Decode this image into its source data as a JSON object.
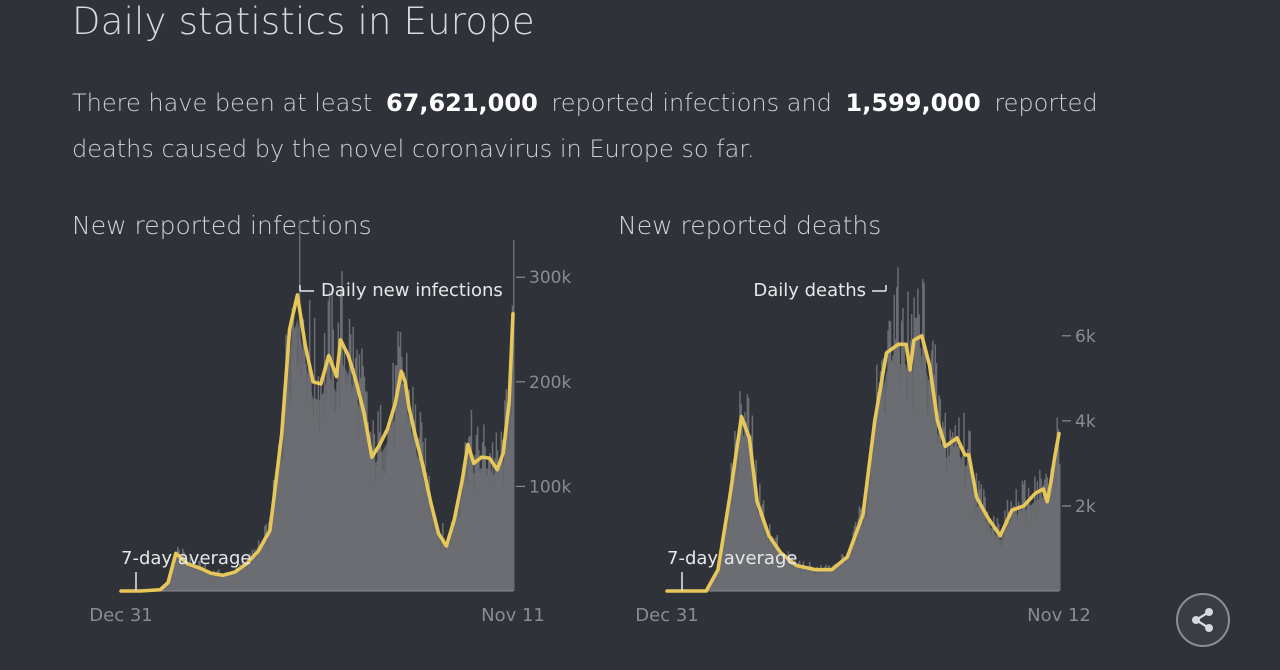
{
  "title": "Daily statistics in Europe",
  "intro": {
    "before": "There have been at least",
    "infections": "67,621,000",
    "middle": "reported infections and",
    "deaths": "1,599,000",
    "after": "reported deaths caused by the novel coronavirus in Europe so far."
  },
  "colors": {
    "background": "#2f3239",
    "bars": "#6b6d72",
    "average": "#e8c75a",
    "text": "#d3d4d7",
    "axis": "#8a8c91"
  },
  "share": {
    "icon": "share-icon"
  },
  "chart_data": [
    {
      "type": "bar",
      "title": "New reported infections",
      "series": [
        {
          "name": "Daily new infections",
          "kind": "bar"
        },
        {
          "name": "7-day average",
          "kind": "line",
          "points": [
            [
              0,
              0
            ],
            [
              0.05,
              0
            ],
            [
              0.1,
              1200
            ],
            [
              0.12,
              8000
            ],
            [
              0.14,
              36000
            ],
            [
              0.17,
              26000
            ],
            [
              0.2,
              22000
            ],
            [
              0.23,
              17000
            ],
            [
              0.26,
              15000
            ],
            [
              0.29,
              18000
            ],
            [
              0.32,
              26000
            ],
            [
              0.35,
              38000
            ],
            [
              0.38,
              58000
            ],
            [
              0.41,
              150000
            ],
            [
              0.43,
              250000
            ],
            [
              0.45,
              283000
            ],
            [
              0.47,
              235000
            ],
            [
              0.49,
              200000
            ],
            [
              0.51,
              198000
            ],
            [
              0.53,
              225000
            ],
            [
              0.55,
              205000
            ],
            [
              0.56,
              240000
            ],
            [
              0.58,
              225000
            ],
            [
              0.6,
              200000
            ],
            [
              0.62,
              170000
            ],
            [
              0.64,
              128000
            ],
            [
              0.66,
              140000
            ],
            [
              0.68,
              155000
            ],
            [
              0.7,
              180000
            ],
            [
              0.715,
              210000
            ],
            [
              0.725,
              200000
            ],
            [
              0.735,
              175000
            ],
            [
              0.75,
              150000
            ],
            [
              0.77,
              120000
            ],
            [
              0.79,
              85000
            ],
            [
              0.81,
              55000
            ],
            [
              0.83,
              43000
            ],
            [
              0.85,
              68000
            ],
            [
              0.87,
              105000
            ],
            [
              0.885,
              140000
            ],
            [
              0.9,
              122000
            ],
            [
              0.92,
              128000
            ],
            [
              0.94,
              127000
            ],
            [
              0.96,
              116000
            ],
            [
              0.975,
              132000
            ],
            [
              0.99,
              180000
            ],
            [
              1.0,
              265000
            ]
          ]
        }
      ],
      "x_start_label": "Dec 31",
      "x_end_label": "Nov 11",
      "y_ticks": [
        {
          "value": 100000,
          "label": "100k"
        },
        {
          "value": 200000,
          "label": "200k"
        },
        {
          "value": 300000,
          "label": "300k"
        }
      ],
      "ylim": [
        0,
        305000
      ]
    },
    {
      "type": "bar",
      "title": "New reported deaths",
      "series": [
        {
          "name": "Daily deaths",
          "kind": "bar"
        },
        {
          "name": "7-day average",
          "kind": "line",
          "points": [
            [
              0,
              0
            ],
            [
              0.1,
              0
            ],
            [
              0.13,
              500
            ],
            [
              0.16,
              2200
            ],
            [
              0.19,
              4100
            ],
            [
              0.21,
              3600
            ],
            [
              0.23,
              2100
            ],
            [
              0.26,
              1300
            ],
            [
              0.29,
              900
            ],
            [
              0.33,
              600
            ],
            [
              0.38,
              500
            ],
            [
              0.42,
              500
            ],
            [
              0.46,
              800
            ],
            [
              0.5,
              1800
            ],
            [
              0.53,
              4000
            ],
            [
              0.56,
              5600
            ],
            [
              0.59,
              5800
            ],
            [
              0.61,
              5800
            ],
            [
              0.62,
              5200
            ],
            [
              0.63,
              5900
            ],
            [
              0.65,
              6000
            ],
            [
              0.67,
              5300
            ],
            [
              0.69,
              4000
            ],
            [
              0.71,
              3400
            ],
            [
              0.74,
              3600
            ],
            [
              0.76,
              3200
            ],
            [
              0.77,
              3200
            ],
            [
              0.79,
              2200
            ],
            [
              0.82,
              1700
            ],
            [
              0.85,
              1300
            ],
            [
              0.88,
              1900
            ],
            [
              0.91,
              2000
            ],
            [
              0.94,
              2300
            ],
            [
              0.96,
              2400
            ],
            [
              0.97,
              2100
            ],
            [
              0.98,
              2600
            ],
            [
              0.99,
              3200
            ],
            [
              1.0,
              3700
            ]
          ]
        }
      ],
      "x_start_label": "Dec 31",
      "x_end_label": "Nov 12",
      "y_ticks": [
        {
          "value": 2000,
          "label": "2k"
        },
        {
          "value": 4000,
          "label": "4k"
        },
        {
          "value": 6000,
          "label": "6k"
        }
      ],
      "ylim": [
        0,
        7500
      ]
    }
  ]
}
